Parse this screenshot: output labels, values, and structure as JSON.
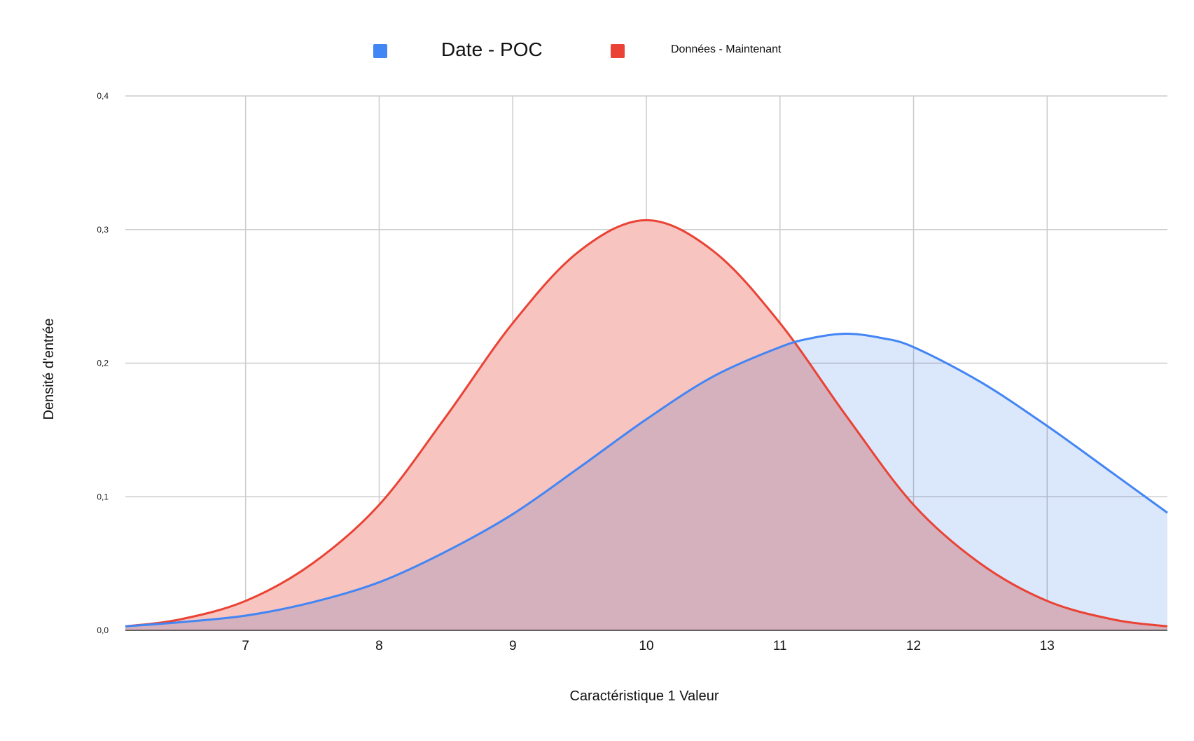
{
  "chart_data": {
    "type": "area",
    "title": "",
    "xlabel": "Caractéristique 1 Valeur",
    "ylabel": "Densité d'entrée",
    "xlim": [
      6.1,
      13.9
    ],
    "ylim": [
      0,
      0.4
    ],
    "x_ticks": [
      7,
      8,
      9,
      10,
      11,
      12,
      13
    ],
    "x_tick_labels": [
      "7",
      "8",
      "9",
      "10",
      "11",
      "12",
      "13"
    ],
    "y_ticks": [
      0,
      0.1,
      0.2,
      0.3,
      0.4
    ],
    "y_tick_labels": [
      "0,0",
      "0,1",
      "0,2",
      "0,3",
      "0,4"
    ],
    "grid": true,
    "legend_position": "top",
    "series": [
      {
        "name": "Date - POC",
        "color": "#4285f4",
        "fill": "#c5d9f8",
        "x": [
          6.1,
          6.5,
          7.0,
          7.5,
          8.0,
          8.5,
          9.0,
          9.5,
          10.0,
          10.5,
          11.0,
          11.25,
          11.5,
          11.75,
          12.0,
          12.5,
          13.0,
          13.5,
          13.9
        ],
        "y": [
          0.003,
          0.006,
          0.011,
          0.021,
          0.036,
          0.059,
          0.087,
          0.122,
          0.158,
          0.19,
          0.212,
          0.219,
          0.222,
          0.219,
          0.212,
          0.186,
          0.153,
          0.117,
          0.088
        ]
      },
      {
        "name": "Données - Maintenant",
        "color": "#ea4335",
        "fill": "#f7c4c0",
        "x": [
          6.1,
          6.5,
          7.0,
          7.5,
          8.0,
          8.5,
          9.0,
          9.5,
          10.0,
          10.5,
          11.0,
          11.5,
          12.0,
          12.5,
          13.0,
          13.5,
          13.9
        ],
        "y": [
          0.003,
          0.008,
          0.022,
          0.05,
          0.094,
          0.16,
          0.23,
          0.284,
          0.307,
          0.284,
          0.23,
          0.16,
          0.094,
          0.05,
          0.022,
          0.008,
          0.003
        ]
      }
    ]
  }
}
